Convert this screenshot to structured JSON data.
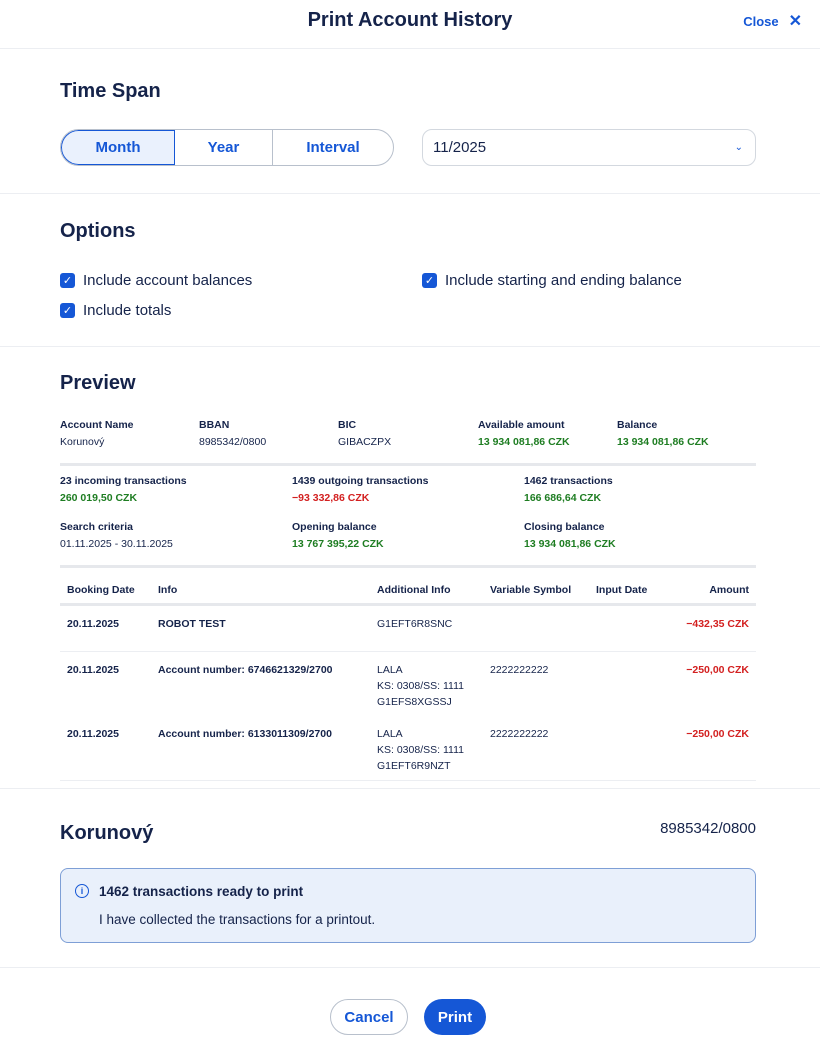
{
  "header": {
    "title": "Print Account History",
    "close_label": "Close"
  },
  "time_span": {
    "heading": "Time Span",
    "options": [
      "Month",
      "Year",
      "Interval"
    ],
    "selected": "Month",
    "period_value": "11/2025"
  },
  "options": {
    "heading": "Options",
    "checkboxes": [
      {
        "label": "Include account balances",
        "checked": true
      },
      {
        "label": "Include starting and ending balance",
        "checked": true
      },
      {
        "label": "Include totals",
        "checked": true
      }
    ]
  },
  "preview": {
    "heading": "Preview",
    "account": [
      {
        "label": "Account Name",
        "value": "Korunový"
      },
      {
        "label": "BBAN",
        "value": "8985342/0800"
      },
      {
        "label": "BIC",
        "value": "GIBACZPX"
      },
      {
        "label": "Available amount",
        "value": "13 934 081,86 CZK"
      },
      {
        "label": "Balance",
        "value": "13 934 081,86 CZK"
      }
    ],
    "summary": [
      {
        "label": "23 incoming transactions",
        "value": "260 019,50 CZK"
      },
      {
        "label": "1439 outgoing transactions",
        "value": "−93 332,86 CZK"
      },
      {
        "label": "1462 transactions",
        "value": "166 686,64 CZK"
      },
      {
        "label": "Search criteria",
        "value": "01.11.2025 - 30.11.2025"
      },
      {
        "label": "Opening balance",
        "value": "13 767 395,22 CZK"
      },
      {
        "label": "Closing balance",
        "value": "13 934 081,86 CZK"
      }
    ],
    "columns": [
      "Booking Date",
      "Info",
      "Additional Info",
      "Variable Symbol",
      "Input Date",
      "Amount"
    ],
    "rows": [
      {
        "date": "20.11.2025",
        "info": "ROBOT TEST",
        "add1": "G1EFT6R8SNC",
        "add2": "",
        "add3": "",
        "vs": "",
        "input": "",
        "amount": "−432,35 CZK"
      },
      {
        "date": "20.11.2025",
        "info": "Account number: 6746621329/2700",
        "add1": "LALA",
        "add2": "KS: 0308/SS: 1111",
        "add3": "G1EFS8XGSSJ",
        "vs": "2222222222",
        "input": "",
        "amount": "−250,00 CZK"
      },
      {
        "date": "20.11.2025",
        "info": "Account number: 6133011309/2700",
        "add1": "LALA",
        "add2": "KS: 0308/SS: 1111",
        "add3": "G1EFT6R9NZT",
        "vs": "2222222222",
        "input": "",
        "amount": "−250,00 CZK"
      }
    ]
  },
  "account_footer": {
    "name": "Korunový",
    "number": "8985342/0800"
  },
  "notice": {
    "icon": "info-icon",
    "title": "1462 transactions ready to print",
    "text": "I have collected the transactions for a printout."
  },
  "actions": {
    "cancel": "Cancel",
    "print": "Print"
  },
  "colors": {
    "accent": "#1557d6",
    "positive": "#1e7d22",
    "negative": "#d32020",
    "text": "#15234a"
  }
}
